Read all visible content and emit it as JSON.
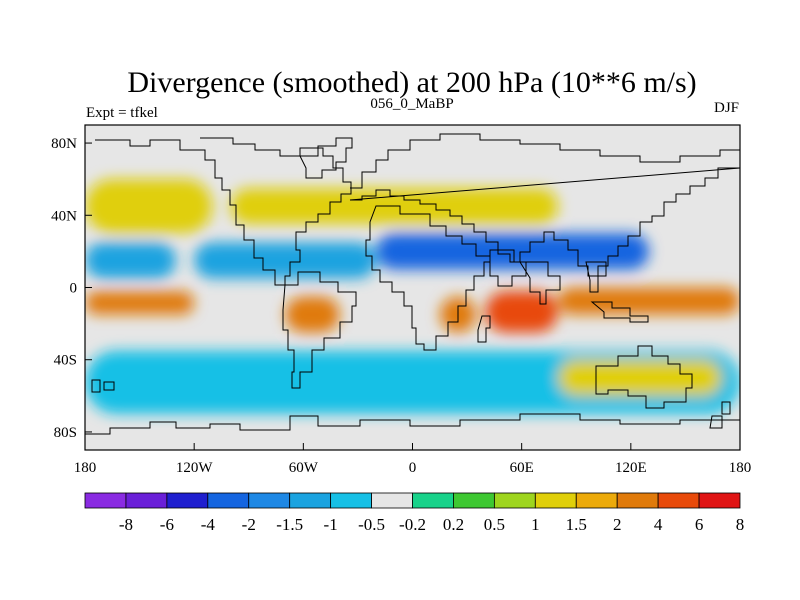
{
  "title": "Divergence (smoothed) at 200 hPa (10**6 m/s)",
  "left_subtitle": "Expt = tfkel",
  "center_subtitle": "056_0_MaBP",
  "right_subtitle": "DJF",
  "map": {
    "lon_range": [
      -180,
      180
    ],
    "lat_range": [
      -90,
      90
    ],
    "projection": "cylindrical-equidistant",
    "missing_color": "#e6e6e6",
    "x_ticks": [
      {
        "value": -180,
        "label": "180"
      },
      {
        "value": -120,
        "label": "120W"
      },
      {
        "value": -60,
        "label": "60W"
      },
      {
        "value": 0,
        "label": "0"
      },
      {
        "value": 60,
        "label": "60E"
      },
      {
        "value": 120,
        "label": "120E"
      },
      {
        "value": 180,
        "label": "180"
      }
    ],
    "y_ticks": [
      {
        "value": 80,
        "label": "80N"
      },
      {
        "value": 40,
        "label": "40N"
      },
      {
        "value": 0,
        "label": "0"
      },
      {
        "value": -40,
        "label": "40S"
      },
      {
        "value": -80,
        "label": "80S"
      }
    ]
  },
  "colorbar": {
    "colors": [
      "#8a2be2",
      "#6a1fd8",
      "#1f1fcf",
      "#1565e0",
      "#1e88e5",
      "#1aa3e0",
      "#17c0e6",
      "#e6e6e6",
      "#18d28a",
      "#3ec832",
      "#9ed51e",
      "#e0cf0a",
      "#ecaa0a",
      "#e07a0a",
      "#e84a0a",
      "#e01414"
    ],
    "labels": [
      "-8",
      "-6",
      "-4",
      "-2",
      "-1.5",
      "-1",
      "-0.5",
      "-0.2",
      "0.2",
      "0.5",
      "1",
      "1.5",
      "2",
      "4",
      "6",
      "8"
    ]
  },
  "chart_data": {
    "type": "heatmap",
    "variable": "Divergence (smoothed)",
    "level_hPa": 200,
    "units": "10**6 m/s",
    "season": "DJF",
    "levels": [
      -8,
      -6,
      -4,
      -2,
      -1.5,
      -1,
      -0.5,
      -0.2,
      0.2,
      0.5,
      1,
      1.5,
      2,
      4,
      6,
      8
    ],
    "features": [
      {
        "desc": "strong convergence band across North Africa / Middle East / South Asia",
        "lon": [
          -20,
          130
        ],
        "lat": [
          10,
          30
        ],
        "value": -2.5
      },
      {
        "desc": "convergence band over tropical Atlantic and north America",
        "lon": [
          -120,
          -20
        ],
        "lat": [
          5,
          25
        ],
        "value": -1.5
      },
      {
        "desc": "convergence band over tropical Pacific",
        "lon": [
          -180,
          -130
        ],
        "lat": [
          5,
          25
        ],
        "value": -1.2
      },
      {
        "desc": "divergence maximum over Indian Ocean / Maritime Continent",
        "lon": [
          40,
          80
        ],
        "lat": [
          -25,
          -2
        ],
        "value": 4
      },
      {
        "desc": "divergence band over western/central South Pacific",
        "lon": [
          80,
          180
        ],
        "lat": [
          -15,
          0
        ],
        "value": 2.2
      },
      {
        "desc": "divergence over South America",
        "lon": [
          -70,
          -40
        ],
        "lat": [
          -25,
          -5
        ],
        "value": 2.5
      },
      {
        "desc": "divergence over southern Africa",
        "lon": [
          15,
          35
        ],
        "lat": [
          -25,
          -5
        ],
        "value": 2.2
      },
      {
        "desc": "divergence over eastern Pacific south of equator",
        "lon": [
          -180,
          -120
        ],
        "lat": [
          -15,
          -2
        ],
        "value": 2.5
      },
      {
        "desc": "divergence band over north Pacific mid-latitudes",
        "lon": [
          -180,
          -110
        ],
        "lat": [
          30,
          60
        ],
        "value": 1.2
      },
      {
        "desc": "divergence band over north Atlantic / Europe",
        "lon": [
          -100,
          80
        ],
        "lat": [
          35,
          55
        ],
        "value": 1
      },
      {
        "desc": "convergence over southern mid-latitudes",
        "lon": [
          -180,
          180
        ],
        "lat": [
          -70,
          -35
        ],
        "value": -0.7
      },
      {
        "desc": "divergence cells over southern ocean",
        "lon": [
          80,
          170
        ],
        "lat": [
          -60,
          -40
        ],
        "value": 1
      }
    ]
  }
}
